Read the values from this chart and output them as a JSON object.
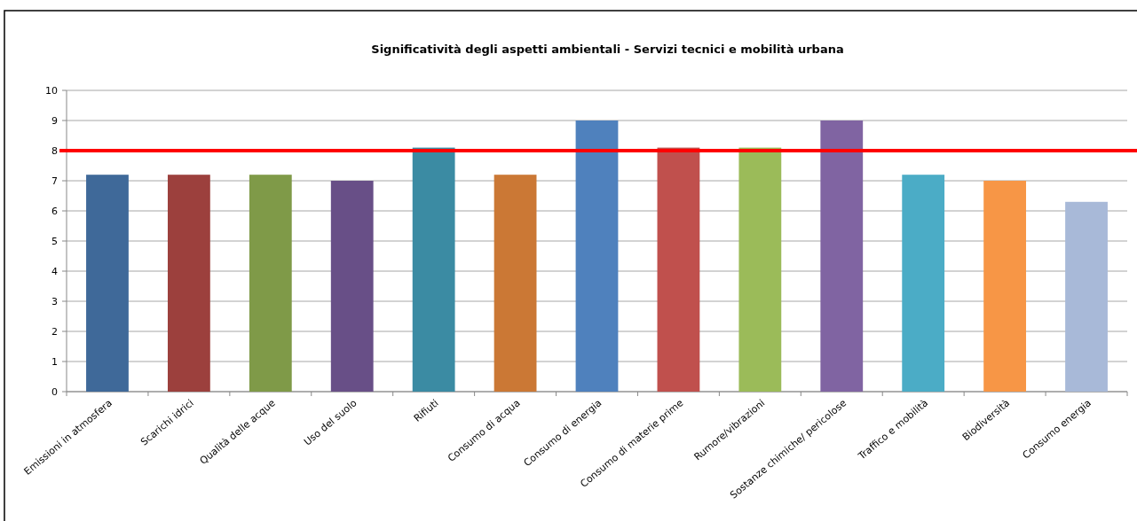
{
  "chart_data": {
    "type": "bar",
    "title": "Significatività degli aspetti ambientali - Servizi tecnici e mobilità urbana",
    "categories": [
      "Emissioni in atmosfera",
      "Scarichi idrici",
      "Qualità delle acque",
      "Uso del suolo",
      "Rifiuti",
      "Consumo di acqua",
      "Consumo di energia",
      "Consumo di materie prime",
      "Rumore/vibrazioni",
      "Sostanze chimiche/ pericolose",
      "Traffico e mobilità",
      "Biodiversità",
      "Consumo energia"
    ],
    "values": [
      7.2,
      7.2,
      7.2,
      7.0,
      8.1,
      7.2,
      9.0,
      8.1,
      8.1,
      9.0,
      7.2,
      7.0,
      6.3
    ],
    "colors": [
      "#3f6999",
      "#9c403d",
      "#7f9a48",
      "#684f87",
      "#3b8ba3",
      "#cb7835",
      "#4f81bd",
      "#c0504d",
      "#9bbb59",
      "#8064a2",
      "#4bacc6",
      "#f79646",
      "#a8b9d8"
    ],
    "ylim": [
      0,
      10
    ],
    "yticks": [
      0,
      1,
      2,
      3,
      4,
      5,
      6,
      7,
      8,
      9,
      10
    ],
    "grid": "y",
    "ref_lines": [
      {
        "axis": "y",
        "value": 8,
        "color": "#ff0000"
      }
    ]
  }
}
